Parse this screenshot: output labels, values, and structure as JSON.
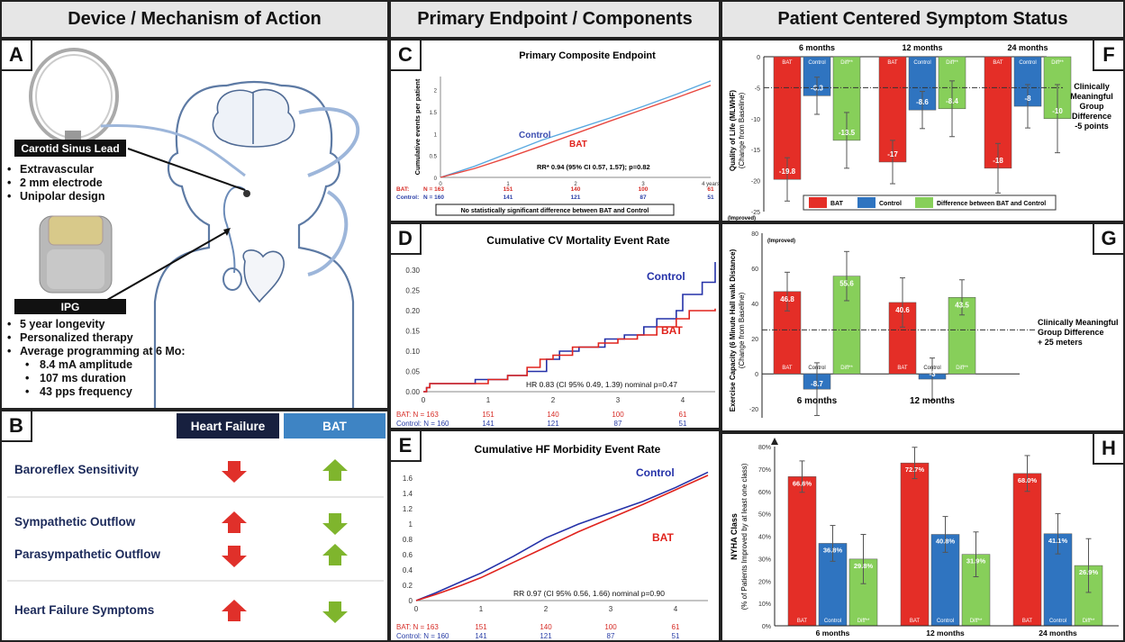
{
  "headers": {
    "device": "Device / Mechanism of Action",
    "endpoint": "Primary Endpoint / Components",
    "symptom": "Patient Centered Symptom Status"
  },
  "letters": {
    "a": "A",
    "b": "B",
    "c": "C",
    "d": "D",
    "e": "E",
    "f": "F",
    "g": "G",
    "h": "H"
  },
  "panel_a": {
    "lead_label": "Carotid Sinus Lead",
    "lead_bullets": [
      "Extravascular",
      "2 mm electrode",
      "Unipolar design"
    ],
    "ipg_label": "IPG",
    "ipg_bullets": [
      "5 year longevity",
      "Personalized therapy",
      "Average programming at 6 Mo:"
    ],
    "ipg_sub_bullets": [
      "8.4 mA amplitude",
      "107 ms duration",
      "43 pps frequency"
    ]
  },
  "panel_b": {
    "col_hf": "Heart Failure",
    "col_bat": "BAT",
    "rows": [
      {
        "label": "Baroreflex Sensitivity",
        "hf": "down",
        "bat": "up"
      },
      {
        "label": "Sympathetic Outflow",
        "hf": "up",
        "bat": "down"
      },
      {
        "label": "Parasympathetic Outflow",
        "hf": "down",
        "bat": "up"
      },
      {
        "label": "Heart Failure Symptoms",
        "hf": "up",
        "bat": "down"
      }
    ],
    "colors": {
      "header_hf": "#17203f",
      "header_bat": "#3e84c4",
      "up_down_hf": "#e0302a",
      "up_down_bat": "#7fb52d"
    }
  },
  "chart_data": [
    {
      "id": "C",
      "type": "line",
      "title": "Primary Composite Endpoint",
      "ylabel": "Cumulative events per patient",
      "x_ticks": [
        0,
        1,
        2,
        3,
        4
      ],
      "x_last_tick_label": "4 years",
      "xlim": [
        0,
        4
      ],
      "y_ticks": [
        0,
        0.5,
        1,
        1.5,
        2
      ],
      "ylim": [
        0,
        2.3
      ],
      "series": [
        {
          "name": "Control",
          "color": "#5aa9e0",
          "x": [
            0,
            0.5,
            1,
            1.5,
            2,
            2.5,
            3,
            3.5,
            4
          ],
          "y": [
            0,
            0.25,
            0.55,
            0.85,
            1.1,
            1.35,
            1.62,
            1.9,
            2.2
          ]
        },
        {
          "name": "BAT",
          "color": "#e8473f",
          "x": [
            0,
            0.5,
            1,
            1.5,
            2,
            2.5,
            3,
            3.5,
            4
          ],
          "y": [
            0,
            0.2,
            0.45,
            0.72,
            1.0,
            1.28,
            1.55,
            1.82,
            2.1
          ]
        }
      ],
      "annotation": "RR* 0.94 (95% CI 0.57, 1.57); p=0.82",
      "at_risk": [
        {
          "label": "BAT:",
          "n": "N = 163",
          "values": [
            "151",
            "140",
            "100",
            "61"
          ],
          "color": "#d62b25"
        },
        {
          "label": "Control:",
          "n": "N = 160",
          "values": [
            "141",
            "121",
            "87",
            "51"
          ],
          "color": "#2a3ea6"
        }
      ],
      "footnote": "No statistically significant difference between BAT and Control"
    },
    {
      "id": "D",
      "type": "line",
      "title": "Cumulative CV Mortality Event Rate",
      "x_ticks": [
        0,
        1,
        2,
        3,
        4
      ],
      "xlim": [
        0,
        4.5
      ],
      "y_ticks": [
        0.0,
        0.05,
        0.1,
        0.15,
        0.2,
        0.25,
        0.3
      ],
      "y_tick_labels": [
        "0.00",
        "0.05",
        "0.10",
        "0.15",
        "0.20",
        "0.25",
        "0.30"
      ],
      "ylim": [
        0,
        0.32
      ],
      "series": [
        {
          "name": "Control",
          "color": "#2431a8",
          "x": [
            0,
            0.05,
            0.1,
            0.6,
            0.8,
            1,
            1.3,
            1.6,
            1.9,
            2.1,
            2.4,
            2.8,
            3.1,
            3.4,
            3.6,
            3.9,
            4.0,
            4.3,
            4.5
          ],
          "y": [
            0,
            0.01,
            0.02,
            0.02,
            0.03,
            0.03,
            0.04,
            0.05,
            0.08,
            0.1,
            0.11,
            0.13,
            0.14,
            0.16,
            0.18,
            0.2,
            0.24,
            0.27,
            0.32
          ]
        },
        {
          "name": "BAT",
          "color": "#e0231d",
          "x": [
            0,
            0.05,
            0.1,
            0.8,
            1,
            1.3,
            1.6,
            1.8,
            2,
            2.3,
            2.7,
            3,
            3.3,
            3.6,
            3.9,
            4.1,
            4.5
          ],
          "y": [
            0,
            0.01,
            0.02,
            0.02,
            0.03,
            0.04,
            0.06,
            0.08,
            0.09,
            0.11,
            0.12,
            0.13,
            0.14,
            0.16,
            0.18,
            0.2,
            0.205
          ]
        }
      ],
      "annotation": "HR 0.83 (CI 95%  0.49, 1.39) nominal  p=0.47",
      "at_risk": [
        {
          "label": "BAT: N = 163",
          "values": [
            "151",
            "140",
            "100",
            "61"
          ],
          "color": "#d62b25"
        },
        {
          "label": "Control: N = 160",
          "values": [
            "141",
            "121",
            "87",
            "51"
          ],
          "color": "#2a3ea6"
        }
      ]
    },
    {
      "id": "E",
      "type": "line",
      "title": "Cumulative HF Morbidity Event Rate",
      "x_ticks": [
        0,
        1,
        2,
        3,
        4
      ],
      "xlim": [
        0,
        4.5
      ],
      "y_ticks": [
        0,
        0.2,
        0.4,
        0.6,
        0.8,
        1.0,
        1.2,
        1.4,
        1.6
      ],
      "y_tick_labels": [
        "0",
        "0.2",
        "0.4",
        "0.6",
        "0.8",
        "1",
        "1.2",
        "1.4",
        "1.6"
      ],
      "ylim": [
        0,
        1.65
      ],
      "series": [
        {
          "name": "Control",
          "color": "#2431a8",
          "x": [
            0,
            0.3,
            0.7,
            1,
            1.5,
            2,
            2.5,
            3,
            3.5,
            4,
            4.5
          ],
          "y": [
            0,
            0.1,
            0.25,
            0.36,
            0.58,
            0.82,
            1.0,
            1.15,
            1.3,
            1.48,
            1.68
          ]
        },
        {
          "name": "BAT",
          "color": "#e0231d",
          "x": [
            0,
            0.3,
            0.7,
            1,
            1.5,
            2,
            2.5,
            3,
            3.5,
            4,
            4.5
          ],
          "y": [
            0,
            0.08,
            0.2,
            0.3,
            0.5,
            0.7,
            0.9,
            1.08,
            1.26,
            1.45,
            1.64
          ]
        }
      ],
      "annotation": "RR 0.97 (CI 95%  0.56, 1.66) nominal  p=0.90",
      "at_risk": [
        {
          "label": "BAT: N = 163",
          "values": [
            "151",
            "140",
            "100",
            "61"
          ],
          "color": "#d62b25"
        },
        {
          "label": "Control: N = 160",
          "values": [
            "141",
            "121",
            "87",
            "51"
          ],
          "color": "#2a3ea6"
        }
      ]
    },
    {
      "id": "F",
      "type": "bar",
      "ylabel": "Quality of Life (MLWHF)",
      "ylabel2": "(Change from Baseline)",
      "ybottom_label": "(Improved)",
      "y_ticks": [
        0,
        -5,
        -10,
        -15,
        -20,
        -25
      ],
      "ylim": [
        -25,
        0
      ],
      "groups": [
        "6 months",
        "12 months",
        "24 months"
      ],
      "bar_labels": [
        "BAT",
        "Control",
        "Diff**"
      ],
      "colors": [
        "#e42e27",
        "#2f74c0",
        "#87cf5a"
      ],
      "values": [
        [
          -19.8,
          -6.3,
          -13.5
        ],
        [
          -17,
          -8.6,
          -8.4
        ],
        [
          -18,
          -8,
          -10
        ]
      ],
      "errors": [
        [
          3.5,
          3,
          4.5
        ],
        [
          3.5,
          3,
          4.5
        ],
        [
          4,
          3.5,
          5.5
        ]
      ],
      "reference": -5,
      "reference_label": [
        "Clinically",
        "Meaningful",
        "Group",
        "Difference",
        "-5 points"
      ],
      "legend": [
        "BAT",
        "Control",
        "Difference between BAT and Control"
      ]
    },
    {
      "id": "G",
      "type": "bar",
      "ylabel": "Exercise Capacity (6 Minute Hall walk Distance)",
      "ylabel2": "(Change from Baseline)",
      "ytop_label": "(Improved)",
      "y_ticks": [
        80,
        60,
        40,
        20,
        0,
        -20
      ],
      "ylim": [
        -25,
        80
      ],
      "groups": [
        "6 months",
        "12 months"
      ],
      "bar_labels": [
        "BAT",
        "Control",
        "Diff**"
      ],
      "colors": [
        "#e42e27",
        "#2f74c0",
        "#87cf5a"
      ],
      "values": [
        [
          46.8,
          -8.7,
          55.6
        ],
        [
          40.6,
          -3,
          43.5
        ]
      ],
      "errors": [
        [
          11,
          15,
          14
        ],
        [
          14,
          12,
          10
        ]
      ],
      "reference": 25,
      "reference_label": [
        "Clinically Meaningful",
        "Group Difference",
        "+ 25 meters"
      ]
    },
    {
      "id": "H",
      "type": "bar",
      "ylabel": "NYHA Class",
      "ylabel2": "(% of Patients Improved by at least one class)",
      "y_ticks": [
        0,
        10,
        20,
        30,
        40,
        50,
        60,
        70,
        80
      ],
      "y_tick_labels": [
        "0%",
        "10%",
        "20%",
        "30%",
        "40%",
        "50%",
        "60%",
        "70%",
        "80%"
      ],
      "ylim": [
        0,
        80
      ],
      "groups": [
        "6 months",
        "12 months",
        "24 months"
      ],
      "bar_labels": [
        "BAT",
        "Control",
        "Diff**"
      ],
      "colors": [
        "#e42e27",
        "#2f74c0",
        "#87cf5a"
      ],
      "values": [
        [
          66.6,
          36.8,
          29.8
        ],
        [
          72.7,
          40.8,
          31.9
        ],
        [
          68.0,
          41.1,
          26.9
        ]
      ],
      "value_labels": [
        [
          "66.6%",
          "36.8%",
          "29.8%"
        ],
        [
          "72.7%",
          "40.8%",
          "31.9%"
        ],
        [
          "68.0%",
          "41.1%",
          "26.9%"
        ]
      ],
      "errors": [
        [
          7,
          8,
          11
        ],
        [
          7,
          8,
          10
        ],
        [
          8,
          9,
          12
        ]
      ]
    }
  ]
}
